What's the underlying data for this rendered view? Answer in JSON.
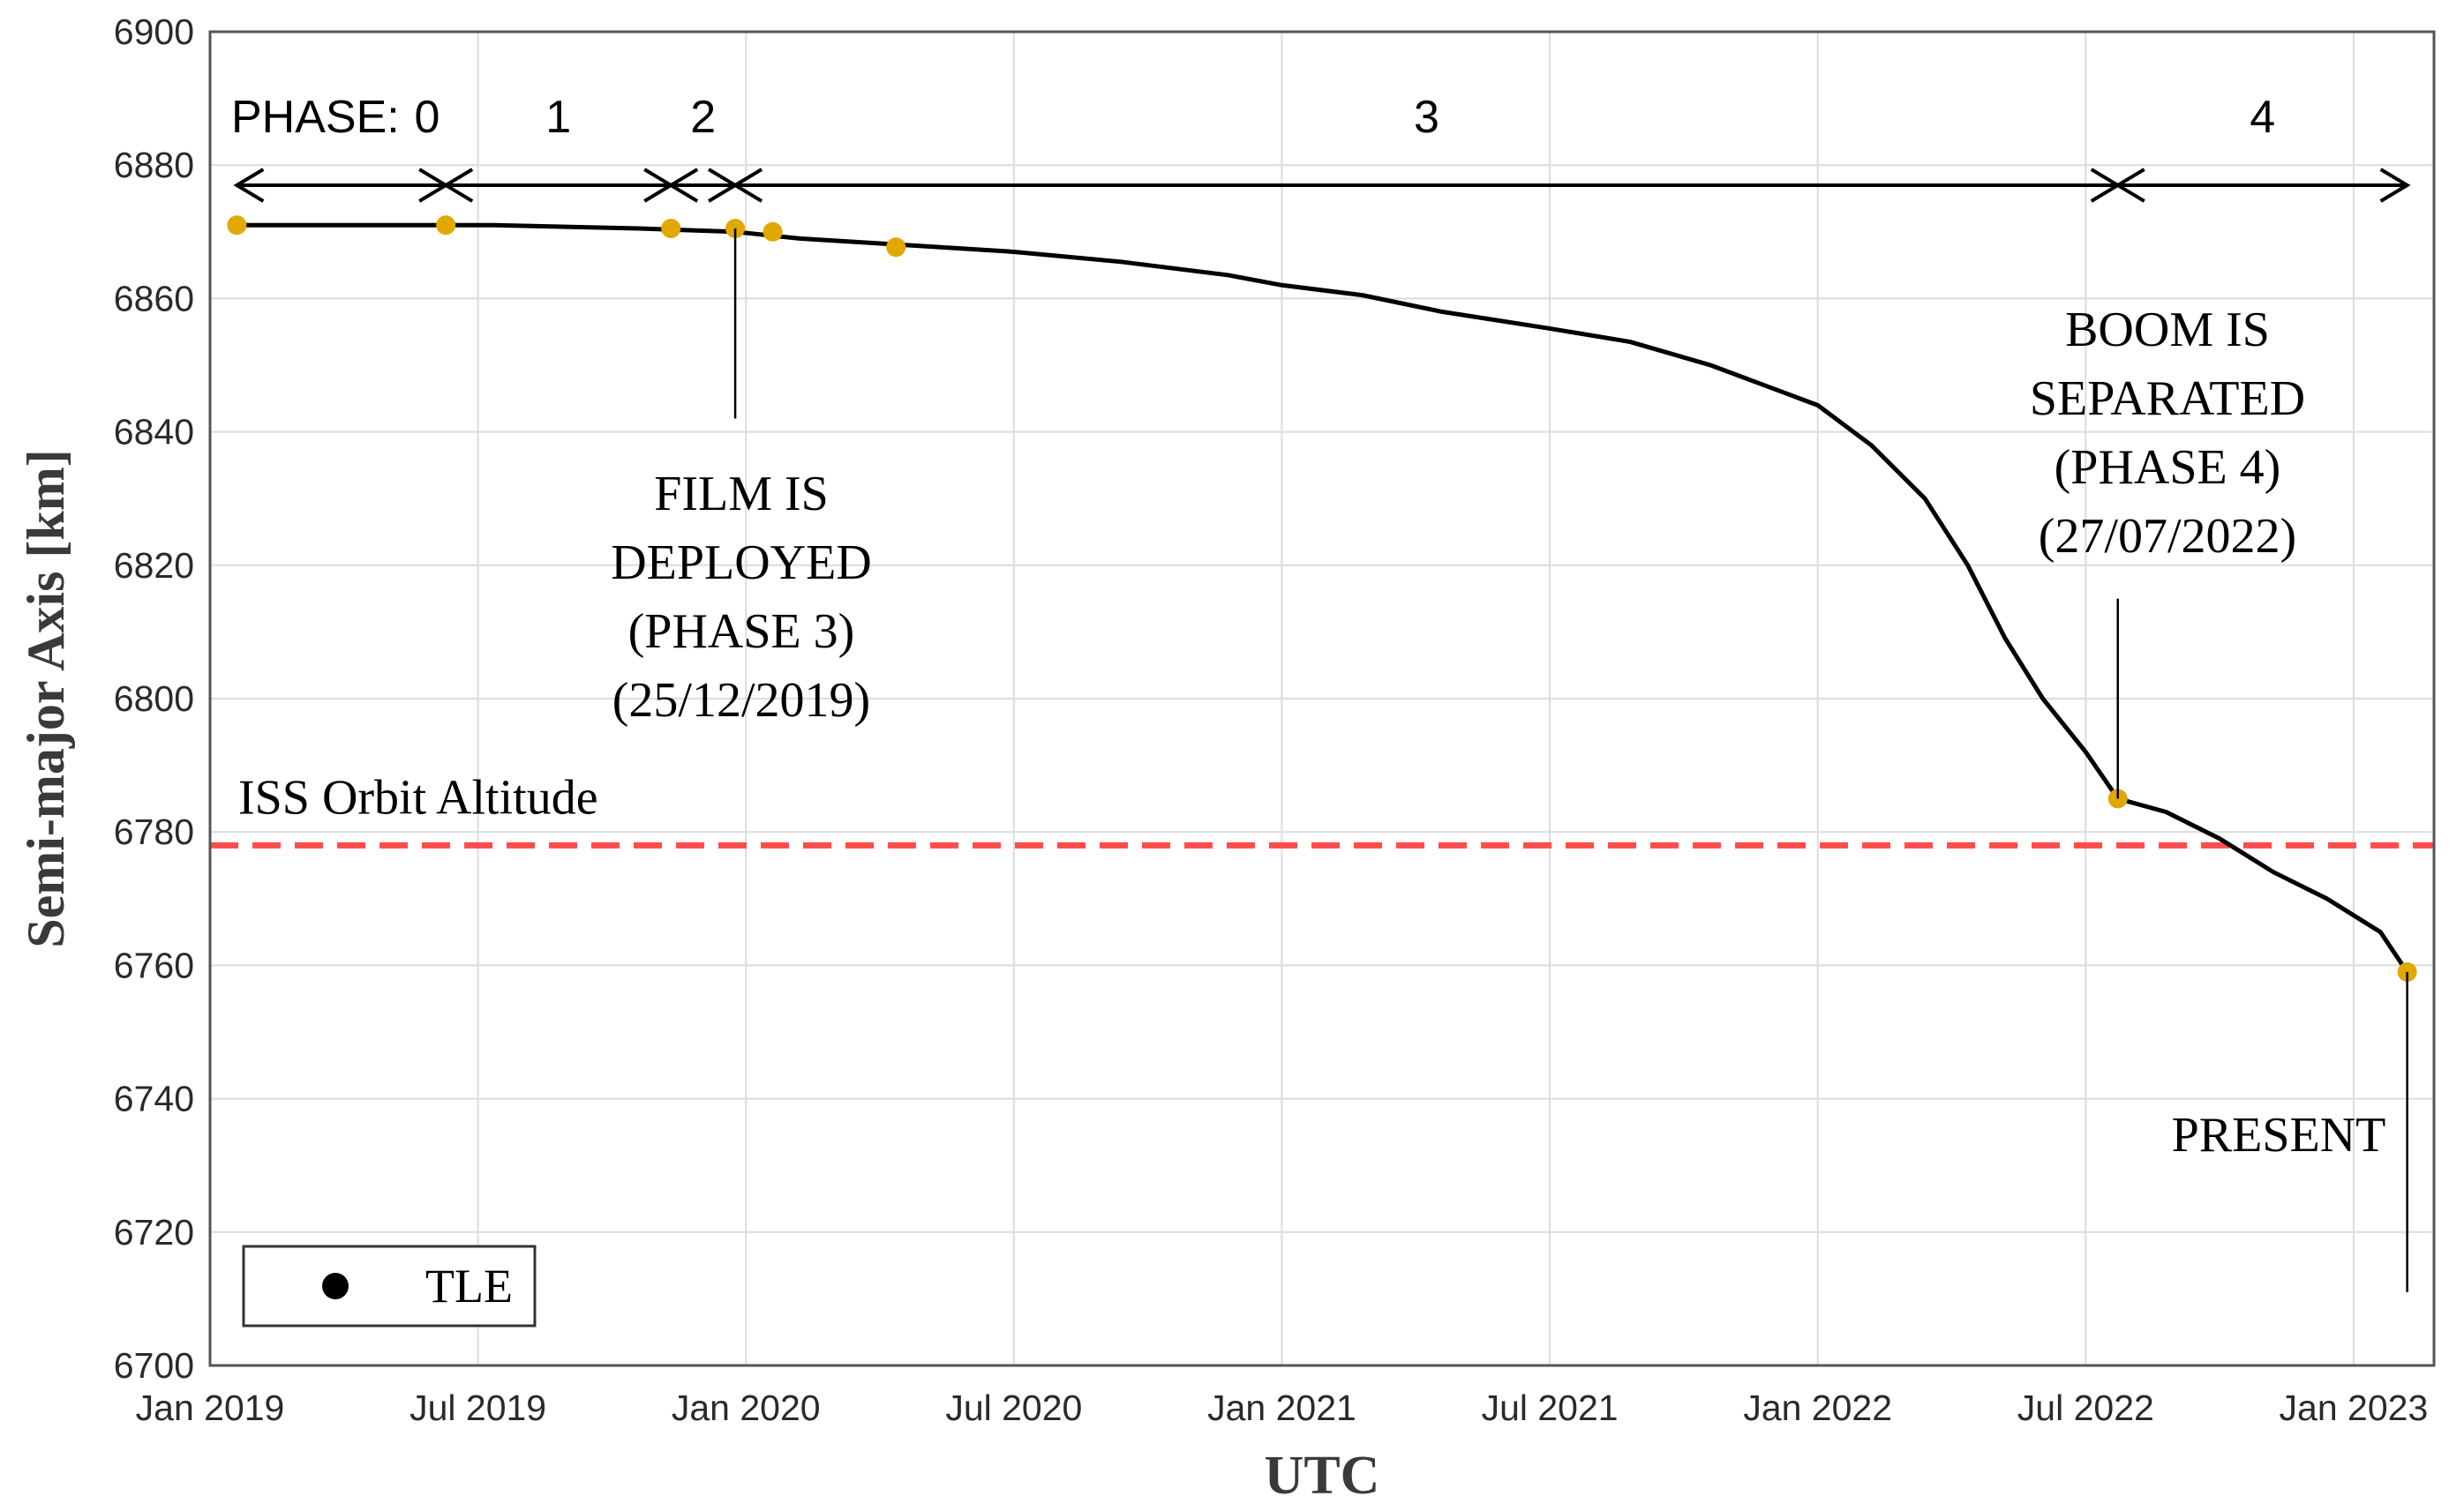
{
  "chart_data": {
    "type": "line",
    "title": "",
    "xlabel": "UTC",
    "ylabel": "Semi-major Axis [km]",
    "ylim": [
      6700,
      6900
    ],
    "yticks": [
      6700,
      6720,
      6740,
      6760,
      6780,
      6800,
      6820,
      6840,
      6860,
      6880,
      6900
    ],
    "xlim": [
      2019.0,
      2023.15
    ],
    "xticks": [
      {
        "value": 2019.0,
        "label": "Jan 2019"
      },
      {
        "value": 2019.5,
        "label": "Jul 2019"
      },
      {
        "value": 2020.0,
        "label": "Jan 2020"
      },
      {
        "value": 2020.5,
        "label": "Jul 2020"
      },
      {
        "value": 2021.0,
        "label": "Jan 2021"
      },
      {
        "value": 2021.5,
        "label": "Jul 2021"
      },
      {
        "value": 2022.0,
        "label": "Jan 2022"
      },
      {
        "value": 2022.5,
        "label": "Jul 2022"
      },
      {
        "value": 2023.0,
        "label": "Jan 2023"
      }
    ],
    "grid": true,
    "series": [
      {
        "name": "Semi-major axis",
        "color": "#000000",
        "x": [
          2019.05,
          2019.3,
          2019.53,
          2019.8,
          2019.98,
          2020.1,
          2020.3,
          2020.5,
          2020.7,
          2020.9,
          2021.0,
          2021.15,
          2021.3,
          2021.5,
          2021.65,
          2021.8,
          2021.9,
          2022.0,
          2022.1,
          2022.2,
          2022.28,
          2022.35,
          2022.42,
          2022.5,
          2022.56,
          2022.65,
          2022.75,
          2022.85,
          2022.95,
          2023.05,
          2023.1
        ],
        "y": [
          6871,
          6871,
          6871,
          6870.5,
          6870,
          6869,
          6868,
          6867,
          6865.5,
          6863.5,
          6862,
          6860.5,
          6858,
          6855.5,
          6853.5,
          6850,
          6847,
          6844,
          6838,
          6830,
          6820,
          6809,
          6800,
          6792,
          6785,
          6783,
          6779,
          6774,
          6770,
          6765,
          6759
        ]
      },
      {
        "name": "TLE",
        "type": "scatter",
        "color": "#E0A800",
        "x": [
          2019.05,
          2019.44,
          2019.86,
          2019.98,
          2020.05,
          2020.28,
          2022.56,
          2023.1
        ],
        "y": [
          6871,
          6871,
          6870.5,
          6870.5,
          6870,
          6867.7,
          6785,
          6759
        ]
      }
    ],
    "reference_lines": [
      {
        "label": "ISS Orbit Altitude",
        "y": 6778,
        "color": "#ff4c4c",
        "style": "dashed"
      }
    ],
    "phase_label_prefix": "PHASE:",
    "phases": [
      {
        "label": "0",
        "start": 2019.05,
        "end": 2019.44
      },
      {
        "label": "1",
        "start": 2019.44,
        "end": 2019.86
      },
      {
        "label": "2",
        "start": 2019.86,
        "end": 2019.98
      },
      {
        "label": "3",
        "start": 2019.98,
        "end": 2022.56
      },
      {
        "label": "4",
        "start": 2022.56,
        "end": 2023.1
      }
    ],
    "annotations": [
      {
        "lines": [
          "FILM IS",
          "DEPLOYED",
          "(PHASE 3)",
          "(25/12/2019)"
        ],
        "x": 2019.98,
        "y": 6870.5
      },
      {
        "lines": [
          "BOOM IS",
          "SEPARATED",
          "(PHASE 4)",
          "(27/07/2022)"
        ],
        "x": 2022.56,
        "y": 6785
      },
      {
        "lines": [
          "PRESENT"
        ],
        "x": 2023.1,
        "y": 6759
      }
    ],
    "legend": {
      "position": "bottom-left",
      "entries": [
        "TLE"
      ],
      "marker_color": "#000000"
    }
  }
}
